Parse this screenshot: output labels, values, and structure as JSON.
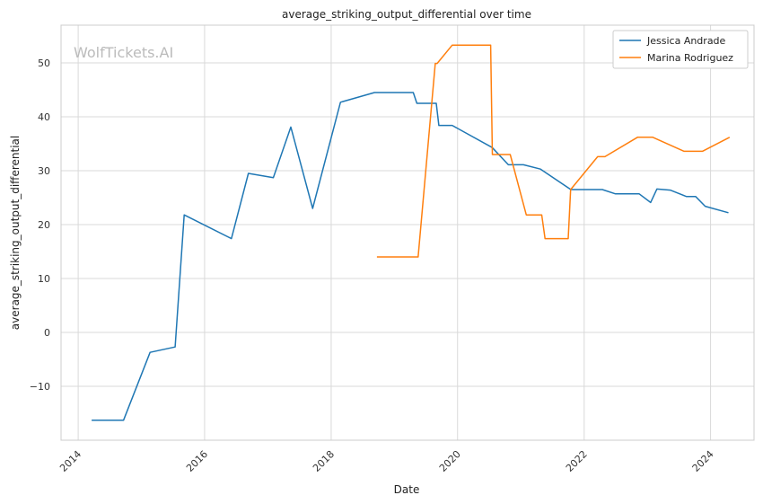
{
  "colors": {
    "series_1": "#1f77b4",
    "series_2": "#ff7f0e",
    "grid": "#d9d9d9",
    "frame": "#cccccc"
  },
  "watermark": "WolfTickets.AI",
  "chart_data": {
    "type": "line",
    "title": "average_striking_output_differential over time",
    "xlabel": "Date",
    "ylabel": "average_striking_output_differential",
    "xlim": [
      "2013-09-24",
      "2024-09-08"
    ],
    "ylim": [
      -20,
      57
    ],
    "grid": true,
    "legend_position": "top-right",
    "x_ticks": [
      {
        "date": "2014-01-01",
        "label": "2014"
      },
      {
        "date": "2016-01-01",
        "label": "2016"
      },
      {
        "date": "2018-01-01",
        "label": "2018"
      },
      {
        "date": "2020-01-01",
        "label": "2020"
      },
      {
        "date": "2022-01-01",
        "label": "2022"
      },
      {
        "date": "2024-01-01",
        "label": "2024"
      }
    ],
    "y_ticks": [
      {
        "value": -10,
        "label": "−10"
      },
      {
        "value": 0,
        "label": "0"
      },
      {
        "value": 10,
        "label": "10"
      },
      {
        "value": 20,
        "label": "20"
      },
      {
        "value": 30,
        "label": "30"
      },
      {
        "value": 40,
        "label": "40"
      },
      {
        "value": 50,
        "label": "50"
      }
    ],
    "series": [
      {
        "name": "Jessica Andrade",
        "color": "#1f77b4",
        "points": [
          [
            "2014-03-20",
            -16.3
          ],
          [
            "2014-09-20",
            -16.3
          ],
          [
            "2015-02-20",
            -3.7
          ],
          [
            "2015-07-15",
            -2.7
          ],
          [
            "2015-09-05",
            21.8
          ],
          [
            "2016-06-04",
            17.4
          ],
          [
            "2016-09-10",
            29.5
          ],
          [
            "2017-02-01",
            28.7
          ],
          [
            "2017-05-13",
            38.1
          ],
          [
            "2017-09-16",
            23.0
          ],
          [
            "2018-02-24",
            42.7
          ],
          [
            "2018-09-08",
            44.5
          ],
          [
            "2019-04-20",
            44.5
          ],
          [
            "2019-05-11",
            42.5
          ],
          [
            "2019-08-31",
            42.5
          ],
          [
            "2019-09-15",
            38.4
          ],
          [
            "2019-12-01",
            38.4
          ],
          [
            "2020-07-19",
            34.3
          ],
          [
            "2020-10-20",
            31.1
          ],
          [
            "2021-01-15",
            31.1
          ],
          [
            "2021-04-24",
            30.3
          ],
          [
            "2021-10-16",
            26.5
          ],
          [
            "2022-04-16",
            26.5
          ],
          [
            "2022-07-01",
            25.7
          ],
          [
            "2022-11-15",
            25.7
          ],
          [
            "2023-01-20",
            24.1
          ],
          [
            "2023-02-25",
            26.6
          ],
          [
            "2023-05-13",
            26.4
          ],
          [
            "2023-08-15",
            25.2
          ],
          [
            "2023-10-07",
            25.2
          ],
          [
            "2023-12-01",
            23.4
          ],
          [
            "2024-04-13",
            22.2
          ]
        ]
      },
      {
        "name": "Marina Rodriguez",
        "color": "#ff7f0e",
        "points": [
          [
            "2018-09-22",
            14.0
          ],
          [
            "2019-05-18",
            14.0
          ],
          [
            "2019-08-25",
            49.9
          ],
          [
            "2019-09-05",
            49.9
          ],
          [
            "2019-12-01",
            53.3
          ],
          [
            "2020-07-10",
            53.3
          ],
          [
            "2020-07-20",
            33.0
          ],
          [
            "2020-10-31",
            33.0
          ],
          [
            "2021-02-01",
            21.8
          ],
          [
            "2021-05-01",
            21.8
          ],
          [
            "2021-05-20",
            17.4
          ],
          [
            "2021-10-01",
            17.4
          ],
          [
            "2021-10-15",
            26.5
          ],
          [
            "2022-03-20",
            32.6
          ],
          [
            "2022-05-01",
            32.6
          ],
          [
            "2022-11-05",
            36.2
          ],
          [
            "2023-02-01",
            36.2
          ],
          [
            "2023-08-01",
            33.6
          ],
          [
            "2023-11-15",
            33.6
          ],
          [
            "2024-04-20",
            36.2
          ]
        ]
      }
    ]
  }
}
